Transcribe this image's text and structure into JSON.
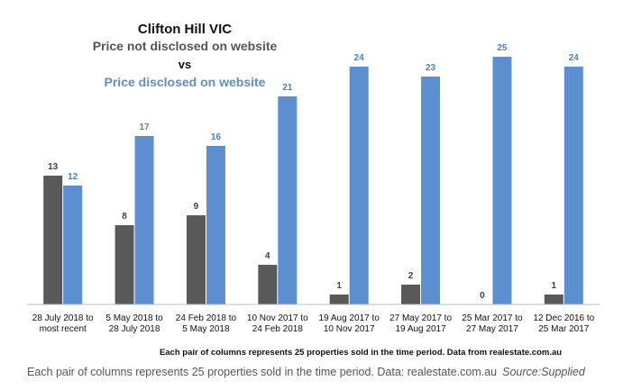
{
  "chart_data": {
    "type": "bar",
    "title_lines": [
      "Clifton Hill VIC",
      "Price not disclosed on website",
      "vs",
      "Price disclosed on website"
    ],
    "categories": [
      [
        "28 July 2018 to",
        "most recent"
      ],
      [
        "5 May 2018 to",
        "28 July 2018"
      ],
      [
        "24 Feb 2018 to",
        "5 May 2018"
      ],
      [
        "10 Nov 2017 to",
        "24 Feb 2018"
      ],
      [
        "19 Aug 2017 to",
        "10 Nov 2017"
      ],
      [
        "27 May 2017 to",
        "19 Aug 2017"
      ],
      [
        "25 Mar 2017 to",
        "27 May 2017"
      ],
      [
        "12 Dec 2016 to",
        "25 Mar 2017"
      ]
    ],
    "series": [
      {
        "name": "Price not disclosed on website",
        "color": "#595959",
        "values": [
          13,
          8,
          9,
          4,
          1,
          2,
          0,
          1
        ]
      },
      {
        "name": "Price disclosed on website",
        "color": "#5b8fd0",
        "values": [
          12,
          17,
          16,
          21,
          24,
          23,
          25,
          24
        ]
      }
    ],
    "ylim": [
      0,
      25
    ],
    "grid": false,
    "legend": "none",
    "footnote": "Each pair of columns represents 25 properties sold in the time period. Data from realestate.com.au"
  },
  "caption": {
    "text": "Each pair of columns represents 25 properties sold in the time period. Data: realestate.com.au",
    "source": "Source:Supplied"
  },
  "colors": {
    "title": "#111111",
    "subtitle_dark": "#555555",
    "subtitle_blue": "#5b8fd0",
    "axis": "#bfbfbf"
  }
}
